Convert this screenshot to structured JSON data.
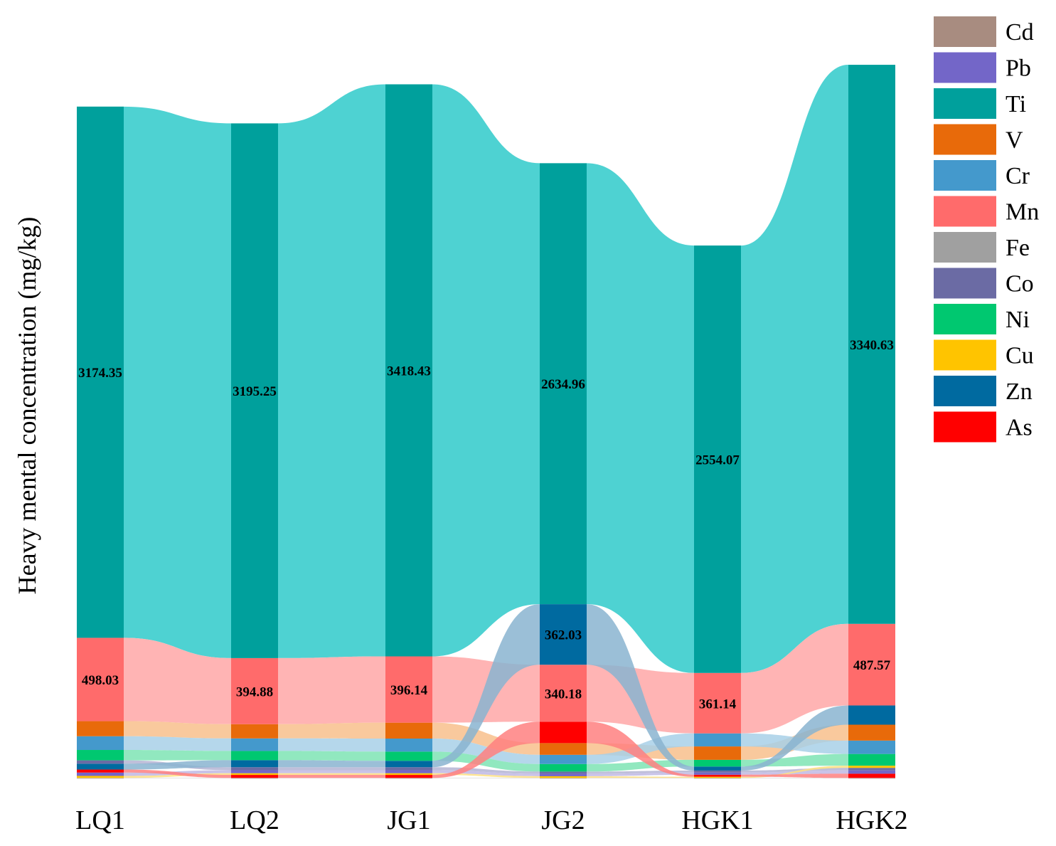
{
  "chart_data": {
    "type": "sankey-stacked-bar",
    "title": "",
    "xlabel": "",
    "ylabel": "Heavy mental concentration (mg/kg)",
    "categories": [
      "LQ1",
      "LQ2",
      "JG1",
      "JG2",
      "HGK1",
      "HGK2"
    ],
    "legend": [
      "Cd",
      "Pb",
      "Ti",
      "V",
      "Cr",
      "Mn",
      "Fe",
      "Co",
      "Ni",
      "Cu",
      "Zn",
      "As"
    ],
    "colors": {
      "Cd": "#a88c80",
      "Pb": "#7366c8",
      "Ti": "#00a09c",
      "V": "#e86a0a",
      "Cr": "#4499cc",
      "Mn": "#ff6b6b",
      "Fe": "#a0a0a0",
      "Co": "#6b6ba4",
      "Ni": "#00c870",
      "Cu": "#ffc400",
      "Zn": "#006aa0",
      "As": "#ff0000"
    },
    "flow_colors": {
      "Ti": "#4ed2d2",
      "Mn": "#ffb4b4",
      "V": "#f8c08c",
      "Cr": "#a8d0e8",
      "Ni": "#7ee4b4",
      "Zn": "#8ab4d0",
      "As": "#ff8080",
      "Co": "#b4b4d4",
      "Cu": "#ffe080",
      "Pb": "#c0b8e4",
      "Fe": "#cccccc",
      "Cd": "#d8c8c0"
    },
    "series": [
      {
        "name": "Cd",
        "values": [
          1,
          1,
          1,
          1,
          1,
          1
        ]
      },
      {
        "name": "Pb",
        "values": [
          20,
          18,
          18,
          15,
          13,
          20
        ]
      },
      {
        "name": "Ti",
        "values": [
          3174.35,
          3195.25,
          3418.43,
          2634.96,
          2554.07,
          3340.63
        ]
      },
      {
        "name": "V",
        "values": [
          90,
          85,
          95,
          70,
          80,
          95
        ]
      },
      {
        "name": "Cr",
        "values": [
          82,
          75,
          78,
          55,
          78,
          80
        ]
      },
      {
        "name": "Mn",
        "values": [
          498.03,
          394.88,
          396.14,
          340.18,
          361.14,
          487.57
        ]
      },
      {
        "name": "Fe",
        "values": [
          2,
          2,
          2,
          2,
          2,
          2
        ]
      },
      {
        "name": "Co",
        "values": [
          20,
          18,
          18,
          13,
          12,
          15
        ]
      },
      {
        "name": "Ni",
        "values": [
          62,
          55,
          55,
          45,
          40,
          70
        ]
      },
      {
        "name": "Cu",
        "values": [
          12,
          10,
          10,
          10,
          7,
          13
        ]
      },
      {
        "name": "Zn",
        "values": [
          35,
          42,
          38,
          362.03,
          24,
          115
        ]
      },
      {
        "name": "As",
        "values": [
          18,
          18,
          18,
          128,
          12,
          25
        ]
      }
    ],
    "data_labels": {
      "Ti": [
        "3174.35",
        "3195.25",
        "3418.43",
        "2634.96",
        "2554.07",
        "3340.63"
      ],
      "Mn": [
        "498.03",
        "394.88",
        "396.14",
        "340.18",
        "361.14",
        "487.57"
      ],
      "Zn": [
        "",
        "",
        "",
        "362.03",
        "",
        ""
      ]
    },
    "stack_order_per_node": [
      [
        "Ti",
        "Mn",
        "V",
        "Cr",
        "Ni",
        "Co",
        "Zn",
        "As",
        "Pb",
        "Cu",
        "Fe",
        "Cd"
      ],
      [
        "Ti",
        "Mn",
        "V",
        "Cr",
        "Ni",
        "Zn",
        "Co",
        "Pb",
        "Cu",
        "As",
        "Fe",
        "Cd"
      ],
      [
        "Ti",
        "Mn",
        "V",
        "Cr",
        "Ni",
        "Zn",
        "Co",
        "Pb",
        "Cu",
        "As",
        "Fe",
        "Cd"
      ],
      [
        "Ti",
        "Zn",
        "Mn",
        "As",
        "V",
        "Cr",
        "Ni",
        "Co",
        "Pb",
        "Cu",
        "Fe",
        "Cd"
      ],
      [
        "Ti",
        "Mn",
        "Cr",
        "V",
        "Ni",
        "Zn",
        "Co",
        "Pb",
        "As",
        "Cu",
        "Fe",
        "Cd"
      ],
      [
        "Ti",
        "Mn",
        "Zn",
        "V",
        "Cr",
        "Ni",
        "Cu",
        "Co",
        "Pb",
        "As",
        "Fe",
        "Cd"
      ]
    ]
  }
}
